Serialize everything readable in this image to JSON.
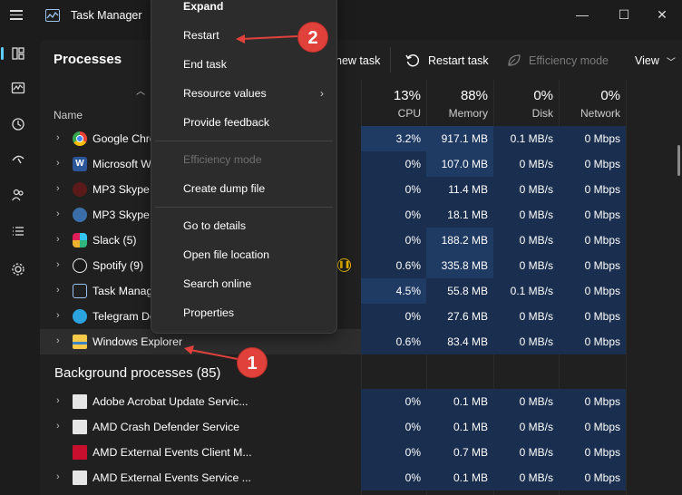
{
  "window": {
    "title": "Task Manager",
    "minimize": "—",
    "maximize": "☐",
    "close": "✕"
  },
  "nav": [
    "processes-icon",
    "performance-icon",
    "app-history-icon",
    "startup-apps-icon",
    "users-icon",
    "details-icon",
    "services-icon"
  ],
  "toolbar": {
    "page_title": "Processes",
    "new_task": "new task",
    "restart_task": "Restart task",
    "efficiency_mode": "Efficiency mode",
    "view": "View"
  },
  "columns": {
    "name": "Name",
    "cpu_pct": "13%",
    "cpu": "CPU",
    "memory_pct": "88%",
    "memory": "Memory",
    "disk_pct": "0%",
    "disk": "Disk",
    "network_pct": "0%",
    "network": "Network"
  },
  "apps": [
    {
      "name": "Google Chro",
      "cpu": "3.2%",
      "memory": "917.1 MB",
      "disk": "0.1 MB/s",
      "network": "0 Mbps"
    },
    {
      "name": "Microsoft W",
      "cpu": "0%",
      "memory": "107.0 MB",
      "disk": "0 MB/s",
      "network": "0 Mbps"
    },
    {
      "name": "MP3 Skype I",
      "cpu": "0%",
      "memory": "11.4 MB",
      "disk": "0 MB/s",
      "network": "0 Mbps"
    },
    {
      "name": "MP3 Skype I",
      "cpu": "0%",
      "memory": "18.1 MB",
      "disk": "0 MB/s",
      "network": "0 Mbps"
    },
    {
      "name": "Slack (5)",
      "cpu": "0%",
      "memory": "188.2 MB",
      "disk": "0 MB/s",
      "network": "0 Mbps"
    },
    {
      "name": "Spotify (9)",
      "cpu": "0.6%",
      "memory": "335.8 MB",
      "disk": "0 MB/s",
      "network": "0 Mbps"
    },
    {
      "name": "Task Manag",
      "cpu": "4.5%",
      "memory": "55.8 MB",
      "disk": "0.1 MB/s",
      "network": "0 Mbps"
    },
    {
      "name": "Telegram De",
      "cpu": "0%",
      "memory": "27.6 MB",
      "disk": "0 MB/s",
      "network": "0 Mbps"
    },
    {
      "name": "Windows Explorer",
      "cpu": "0.6%",
      "memory": "83.4 MB",
      "disk": "0 MB/s",
      "network": "0 Mbps"
    }
  ],
  "background_title": "Background processes (85)",
  "background": [
    {
      "name": "Adobe Acrobat Update Servic...",
      "cpu": "0%",
      "memory": "0.1 MB",
      "disk": "0 MB/s",
      "network": "0 Mbps"
    },
    {
      "name": "AMD Crash Defender Service",
      "cpu": "0%",
      "memory": "0.1 MB",
      "disk": "0 MB/s",
      "network": "0 Mbps"
    },
    {
      "name": "AMD External Events Client M...",
      "cpu": "0%",
      "memory": "0.7 MB",
      "disk": "0 MB/s",
      "network": "0 Mbps"
    },
    {
      "name": "AMD External Events Service ...",
      "cpu": "0%",
      "memory": "0.1 MB",
      "disk": "0 MB/s",
      "network": "0 Mbps"
    }
  ],
  "context_menu": {
    "expand": "Expand",
    "restart": "Restart",
    "end_task": "End task",
    "resource_values": "Resource values",
    "provide_feedback": "Provide feedback",
    "efficiency_mode": "Efficiency mode",
    "create_dump": "Create dump file",
    "go_to_details": "Go to details",
    "open_file_location": "Open file location",
    "search_online": "Search online",
    "properties": "Properties"
  },
  "annotations": {
    "step1": "1",
    "step2": "2",
    "color": "#e0413b"
  }
}
